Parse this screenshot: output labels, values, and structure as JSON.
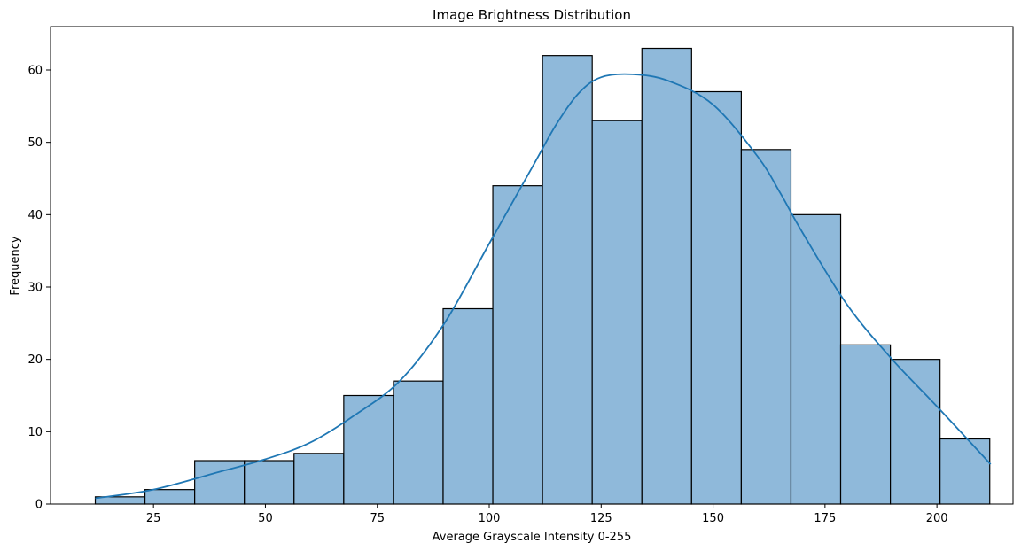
{
  "chart_data": {
    "type": "bar",
    "title": "Image Brightness Distribution",
    "xlabel": "Average Grayscale Intensity 0-255",
    "ylabel": "Frequency",
    "xlim": [
      2,
      217
    ],
    "ylim": [
      0,
      66
    ],
    "xticks": [
      25,
      50,
      75,
      100,
      125,
      150,
      175,
      200
    ],
    "yticks": [
      0,
      10,
      20,
      30,
      40,
      50,
      60
    ],
    "bins": [
      {
        "start": 12.0,
        "end": 23.1,
        "count": 1
      },
      {
        "start": 23.1,
        "end": 34.2,
        "count": 2
      },
      {
        "start": 34.2,
        "end": 45.3,
        "count": 6
      },
      {
        "start": 45.3,
        "end": 56.4,
        "count": 6
      },
      {
        "start": 56.4,
        "end": 67.5,
        "count": 7
      },
      {
        "start": 67.5,
        "end": 78.6,
        "count": 15
      },
      {
        "start": 78.6,
        "end": 89.7,
        "count": 17
      },
      {
        "start": 89.7,
        "end": 100.8,
        "count": 27
      },
      {
        "start": 100.8,
        "end": 111.9,
        "count": 44
      },
      {
        "start": 111.9,
        "end": 123.0,
        "count": 62
      },
      {
        "start": 123.0,
        "end": 134.1,
        "count": 53
      },
      {
        "start": 134.1,
        "end": 145.2,
        "count": 63
      },
      {
        "start": 145.2,
        "end": 156.3,
        "count": 57
      },
      {
        "start": 156.3,
        "end": 167.4,
        "count": 49
      },
      {
        "start": 167.4,
        "end": 178.5,
        "count": 40
      },
      {
        "start": 178.5,
        "end": 189.6,
        "count": 22
      },
      {
        "start": 189.6,
        "end": 200.7,
        "count": 20
      },
      {
        "start": 200.7,
        "end": 211.8,
        "count": 9
      }
    ],
    "kde": {
      "x": [
        12,
        25,
        40,
        50,
        60,
        70,
        80,
        90,
        100,
        110,
        115,
        120,
        125,
        132,
        140,
        150,
        160,
        165,
        170,
        180,
        190,
        200,
        212
      ],
      "y": [
        0.8,
        2.0,
        4.5,
        6.2,
        8.5,
        12.3,
        17.0,
        25.0,
        36.0,
        47.0,
        52.5,
        56.8,
        59.0,
        59.4,
        58.5,
        55.2,
        48.0,
        43.0,
        37.5,
        27.5,
        20.0,
        13.5,
        5.5
      ]
    },
    "bar_color": "#8fb9da",
    "line_color": "#1f77b4",
    "grid": false,
    "legend": "none"
  }
}
